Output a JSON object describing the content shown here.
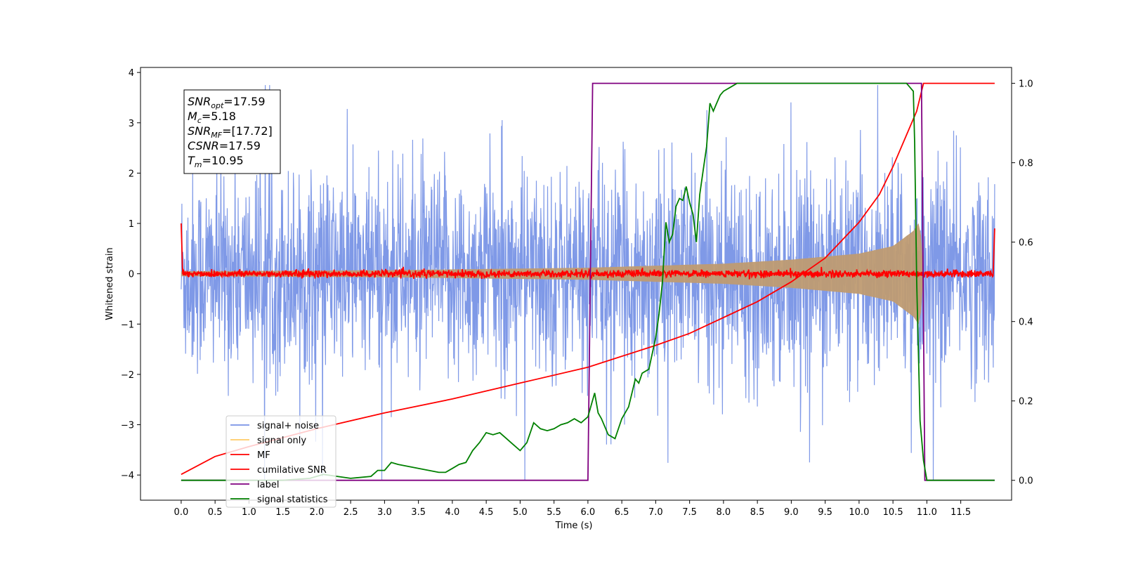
{
  "chart_data": {
    "type": "line",
    "xlabel": "Time (s)",
    "ylabel": "Whitened strain",
    "ylabel_right": "",
    "xlim": [
      -0.6,
      12.25
    ],
    "ylim": [
      -4.5,
      4.1
    ],
    "ylim_right": [
      -0.05,
      1.04
    ],
    "xticks": [
      0.0,
      0.5,
      1.0,
      1.5,
      2.0,
      2.5,
      3.0,
      3.5,
      4.0,
      4.5,
      5.0,
      5.5,
      6.0,
      6.5,
      7.0,
      7.5,
      8.0,
      8.5,
      9.0,
      9.5,
      10.0,
      10.5,
      11.0,
      11.5
    ],
    "xtick_labels": [
      "0.0",
      "0.5",
      "1.0",
      "1.5",
      "2.0",
      "2.5",
      "3.0",
      "3.5",
      "4.0",
      "4.5",
      "5.0",
      "5.5",
      "6.0",
      "6.5",
      "7.0",
      "7.5",
      "8.0",
      "8.5",
      "9.0",
      "9.5",
      "10.0",
      "10.5",
      "11.0",
      "11.5"
    ],
    "yticks": [
      4,
      3,
      2,
      1,
      0,
      -1,
      -2,
      -3,
      -4
    ],
    "ytick_labels": [
      "4",
      "3",
      "2",
      "1",
      "0",
      "−1",
      "−2",
      "−3",
      "−4"
    ],
    "yticks_right": [
      1.0,
      0.8,
      0.6,
      0.4,
      0.2,
      0.0
    ],
    "ytick_labels_right": [
      "1.0",
      "0.8",
      "0.6",
      "0.4",
      "0.2",
      "0.0"
    ],
    "grid": false,
    "legend_position": "lower-left",
    "info_box": [
      {
        "base": "SNR",
        "sub": "opt",
        "value": "=17.59"
      },
      {
        "base": "M",
        "sub": "c",
        "value": "=5.18"
      },
      {
        "base": "SNR",
        "sub": "MF",
        "value": "=[17.72]"
      },
      {
        "base": "CSNR",
        "sub": "",
        "value": "=17.59"
      },
      {
        "base": "T",
        "sub": "m",
        "value": "=10.95"
      }
    ],
    "series": [
      {
        "name": "signal+ noise",
        "color": "#7893e6",
        "axis": "left",
        "kind": "noise_band",
        "t_start": 0.0,
        "t_end": 12.0,
        "lower_envelope": -2.2,
        "upper_envelope": 2.2,
        "max": 3.75,
        "min": -4.1
      },
      {
        "name": "signal only",
        "color": "#bf9b72",
        "axis": "left",
        "kind": "chirp_envelope",
        "t_start": 0.0,
        "t_end": 10.95,
        "amplitude_points": [
          [
            0.0,
            0.05
          ],
          [
            3.0,
            0.07
          ],
          [
            6.0,
            0.12
          ],
          [
            8.0,
            0.2
          ],
          [
            9.0,
            0.28
          ],
          [
            10.0,
            0.4
          ],
          [
            10.5,
            0.55
          ],
          [
            10.8,
            0.85
          ],
          [
            10.9,
            1.05
          ],
          [
            10.95,
            0.0
          ]
        ]
      },
      {
        "name": "MF",
        "color": "#ff0000",
        "axis": "left",
        "kind": "noisy_flat",
        "t_start": 0.0,
        "t_end": 12.0,
        "mean": 0.0,
        "noise_amplitude": 0.06,
        "edge_values": [
          [
            0.0,
            1.0
          ],
          [
            0.02,
            0.05
          ],
          [
            11.98,
            0.05
          ],
          [
            12.0,
            0.9
          ]
        ]
      },
      {
        "name": "cumilative SNR",
        "color": "#ff0000",
        "axis": "right",
        "x": [
          0.0,
          0.5,
          1.0,
          2.0,
          3.0,
          4.0,
          5.0,
          6.0,
          7.0,
          7.5,
          8.0,
          8.5,
          9.0,
          9.5,
          10.0,
          10.3,
          10.5,
          10.7,
          10.85,
          10.95,
          11.0,
          12.0
        ],
        "y": [
          0.015,
          0.06,
          0.085,
          0.13,
          0.17,
          0.205,
          0.245,
          0.285,
          0.34,
          0.37,
          0.41,
          0.45,
          0.5,
          0.56,
          0.65,
          0.72,
          0.79,
          0.87,
          0.93,
          1.0,
          1.0,
          1.0
        ]
      },
      {
        "name": "label",
        "color": "#800080",
        "axis": "right",
        "x": [
          0.0,
          6.0,
          6.07,
          10.92,
          10.97,
          12.0
        ],
        "y": [
          0.0,
          0.0,
          1.0,
          1.0,
          0.0,
          0.0
        ]
      },
      {
        "name": "signal statistics",
        "color": "#008000",
        "axis": "right",
        "x": [
          0.0,
          1.5,
          1.9,
          2.1,
          2.3,
          2.5,
          2.8,
          2.9,
          3.0,
          3.1,
          3.2,
          3.5,
          3.8,
          3.9,
          4.0,
          4.1,
          4.2,
          4.3,
          4.4,
          4.5,
          4.6,
          4.7,
          4.8,
          4.9,
          5.0,
          5.1,
          5.2,
          5.3,
          5.4,
          5.5,
          5.6,
          5.7,
          5.8,
          5.9,
          6.0,
          6.1,
          6.15,
          6.2,
          6.3,
          6.4,
          6.5,
          6.6,
          6.7,
          6.75,
          6.8,
          6.9,
          7.0,
          7.05,
          7.1,
          7.15,
          7.2,
          7.25,
          7.3,
          7.35,
          7.4,
          7.45,
          7.5,
          7.55,
          7.6,
          7.65,
          7.7,
          7.75,
          7.8,
          7.85,
          7.9,
          7.95,
          8.0,
          8.1,
          8.2,
          8.3,
          8.4,
          8.5,
          8.7,
          9.0,
          9.5,
          10.0,
          10.5,
          10.7,
          10.8,
          10.82,
          10.85,
          10.9,
          10.95,
          11.0,
          11.1,
          12.0
        ],
        "y": [
          0.0,
          0.0,
          0.005,
          0.015,
          0.01,
          0.005,
          0.01,
          0.025,
          0.025,
          0.045,
          0.04,
          0.03,
          0.02,
          0.02,
          0.03,
          0.04,
          0.045,
          0.075,
          0.095,
          0.12,
          0.115,
          0.12,
          0.105,
          0.09,
          0.075,
          0.095,
          0.145,
          0.13,
          0.125,
          0.13,
          0.14,
          0.145,
          0.155,
          0.145,
          0.16,
          0.22,
          0.17,
          0.155,
          0.115,
          0.105,
          0.155,
          0.185,
          0.255,
          0.245,
          0.27,
          0.28,
          0.36,
          0.42,
          0.5,
          0.65,
          0.6,
          0.62,
          0.69,
          0.71,
          0.705,
          0.74,
          0.7,
          0.67,
          0.6,
          0.72,
          0.78,
          0.84,
          0.95,
          0.93,
          0.95,
          0.97,
          0.98,
          0.99,
          1.0,
          1.0,
          1.0,
          1.0,
          1.0,
          1.0,
          1.0,
          1.0,
          1.0,
          1.0,
          0.98,
          0.85,
          0.5,
          0.15,
          0.05,
          0.0,
          0.0,
          0.0
        ]
      }
    ],
    "legend_entries": [
      {
        "label": "signal+ noise",
        "color": "#7893e6",
        "alpha": 1.0
      },
      {
        "label": "signal only",
        "color": "#ffbf40",
        "alpha": 0.8
      },
      {
        "label": "MF",
        "color": "#ff0000",
        "alpha": 1.0
      },
      {
        "label": "cumilative SNR",
        "color": "#ff0000",
        "alpha": 1.0
      },
      {
        "label": "label",
        "color": "#800080",
        "alpha": 1.0
      },
      {
        "label": "signal statistics",
        "color": "#008000",
        "alpha": 1.0
      }
    ]
  }
}
